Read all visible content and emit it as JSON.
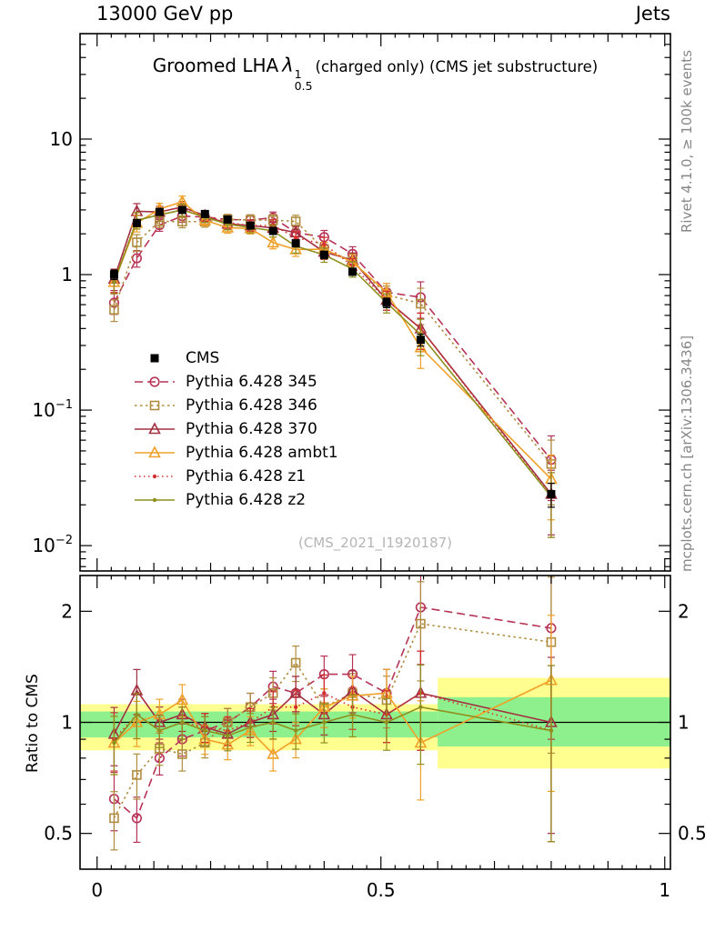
{
  "header": {
    "left": "13000 GeV pp",
    "right": "Jets"
  },
  "title": {
    "prefix": "Groomed LHA",
    "lambda": "λ",
    "sup": "1",
    "sub": "0.5",
    "suffix": "(charged only) (CMS jet substructure)"
  },
  "watermark": "(CMS_2021_I1920187)",
  "side_notes": {
    "top": "Rivet 4.1.0, ≥ 100k events",
    "bottom": "mcplots.cern.ch [arXiv:1306.3436]"
  },
  "axes": {
    "ratio_label": "Ratio to CMS",
    "x_tick_labels": [
      {
        "v": 0,
        "label": "0"
      },
      {
        "v": 0.5,
        "label": "0.5"
      },
      {
        "v": 1,
        "label": "1"
      }
    ],
    "main_y_ticks": [
      {
        "v": 10,
        "base": "10",
        "exp": ""
      },
      {
        "v": 1,
        "base": "1",
        "exp": ""
      },
      {
        "v": 0.1,
        "base": "10",
        "exp": "−1"
      },
      {
        "v": 0.01,
        "base": "10",
        "exp": "−2"
      }
    ],
    "ratio_y_ticks": [
      {
        "v": 2,
        "label": "2"
      },
      {
        "v": 1,
        "label": "1"
      },
      {
        "v": 0.5,
        "label": "0.5"
      }
    ]
  },
  "chart_data": {
    "type": "line",
    "title": "Groomed LHA λ^1_0.5 (charged only) (CMS jet substructure)",
    "legend_position": "middle-left",
    "x": [
      0.03,
      0.07,
      0.11,
      0.15,
      0.19,
      0.23,
      0.27,
      0.31,
      0.35,
      0.4,
      0.45,
      0.51,
      0.57,
      0.8
    ],
    "xlim": [
      -0.03,
      1.01
    ],
    "main_panel": {
      "ylog": true,
      "ylim": [
        0.0065,
        60
      ],
      "majors": [
        0.01,
        0.1,
        1,
        10
      ]
    },
    "ratio_panel": {
      "ylog": true,
      "ylim": [
        0.4,
        2.5
      ],
      "majors": [
        0.5,
        1,
        2
      ],
      "reference": 1,
      "bands": [
        {
          "x0": -0.03,
          "x1": 0.6,
          "yellow": [
            0.84,
            1.12
          ],
          "green": [
            0.91,
            1.07
          ]
        },
        {
          "x0": 0.6,
          "x1": 1.01,
          "yellow": [
            0.75,
            1.32
          ],
          "green": [
            0.86,
            1.17
          ]
        }
      ]
    },
    "band_colors": {
      "yellow": "#ffff8f",
      "green": "#8df08d"
    },
    "mc_err_rel": [
      0.18,
      0.14,
      0.1,
      0.1,
      0.09,
      0.09,
      0.09,
      0.1,
      0.11,
      0.12,
      0.13,
      0.16,
      0.3,
      0.5
    ],
    "series": [
      {
        "name": "CMS",
        "color": "#000000",
        "line": "none",
        "marker": "square-filled",
        "is_reference": true,
        "values": [
          1.0,
          2.4,
          2.9,
          3.0,
          2.8,
          2.55,
          2.3,
          2.1,
          1.7,
          1.4,
          1.05,
          0.62,
          0.33,
          0.024
        ],
        "err_rel": [
          0.08,
          0.05,
          0.04,
          0.04,
          0.04,
          0.04,
          0.04,
          0.05,
          0.05,
          0.06,
          0.06,
          0.08,
          0.1,
          0.2
        ]
      },
      {
        "name": "Pythia 6.428 345",
        "color": "#b73355",
        "line": "dashed",
        "marker": "circle-open",
        "values": [
          0.62,
          1.32,
          2.32,
          2.7,
          2.66,
          2.55,
          2.53,
          2.63,
          2.04,
          1.89,
          1.42,
          0.74,
          0.68,
          0.043
        ],
        "ratio": [
          0.62,
          0.55,
          0.8,
          0.9,
          0.95,
          1.0,
          1.1,
          1.25,
          1.2,
          1.35,
          1.35,
          1.2,
          2.05,
          1.8
        ]
      },
      {
        "name": "Pythia 6.428 346",
        "color": "#b08d3e",
        "line": "dotted",
        "marker": "square-open",
        "values": [
          0.55,
          1.73,
          2.47,
          2.46,
          2.46,
          2.55,
          2.53,
          2.52,
          2.47,
          1.54,
          1.26,
          0.71,
          0.61,
          0.04
        ],
        "ratio": [
          0.55,
          0.72,
          0.85,
          0.82,
          0.88,
          1.0,
          1.1,
          1.2,
          1.45,
          1.1,
          1.2,
          1.15,
          1.85,
          1.65
        ]
      },
      {
        "name": "Pythia 6.428 370",
        "color": "#a33040",
        "line": "solid",
        "marker": "triangle-open",
        "values": [
          0.93,
          2.93,
          2.9,
          3.15,
          2.72,
          2.37,
          2.3,
          2.21,
          2.04,
          1.47,
          1.28,
          0.65,
          0.4,
          0.024
        ],
        "ratio": [
          0.93,
          1.22,
          1.0,
          1.05,
          0.97,
          0.93,
          1.0,
          1.05,
          1.2,
          1.05,
          1.22,
          1.05,
          1.2,
          1.0
        ]
      },
      {
        "name": "Pythia 6.428 ambt1",
        "color": "#f0a028",
        "line": "solid",
        "marker": "triangle-open",
        "values": [
          0.88,
          2.4,
          3.05,
          3.45,
          2.52,
          2.22,
          2.19,
          1.72,
          1.53,
          1.54,
          1.24,
          0.74,
          0.29,
          0.031
        ],
        "ratio": [
          0.88,
          1.0,
          1.05,
          1.15,
          0.9,
          0.87,
          0.95,
          0.82,
          0.9,
          1.1,
          1.18,
          1.2,
          0.88,
          1.3
        ]
      },
      {
        "name": "Pythia 6.428 z1",
        "color": "#d33030",
        "line": "fine-dotted",
        "marker": "dot",
        "values": [
          0.9,
          2.52,
          2.76,
          3.0,
          2.72,
          2.42,
          2.3,
          2.31,
          1.87,
          1.68,
          1.16,
          0.65,
          0.4,
          0.023
        ],
        "ratio": [
          0.9,
          1.05,
          0.95,
          1.0,
          0.97,
          0.95,
          1.0,
          1.1,
          1.1,
          1.2,
          1.1,
          1.05,
          1.2,
          0.95
        ]
      },
      {
        "name": "Pythia 6.428 z2",
        "color": "#8f8f1e",
        "line": "solid",
        "marker": "dot",
        "values": [
          0.88,
          2.52,
          2.76,
          3.0,
          2.66,
          2.35,
          2.23,
          2.1,
          1.62,
          1.4,
          1.1,
          0.62,
          0.36,
          0.023
        ],
        "ratio": [
          0.88,
          1.05,
          0.95,
          1.0,
          0.95,
          0.92,
          0.97,
          1.0,
          0.95,
          1.0,
          1.05,
          1.0,
          1.1,
          0.95
        ]
      }
    ]
  }
}
